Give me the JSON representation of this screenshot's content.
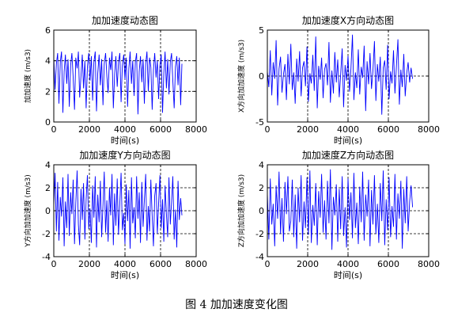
{
  "figure": {
    "caption": "图 4  加加速度变化图"
  },
  "chart_data": [
    {
      "type": "line",
      "title": "加加速度动态图",
      "xlabel": "时间(s)",
      "ylabel": "加加速度 (m/s3)",
      "xlim": [
        0,
        8000
      ],
      "ylim": [
        0,
        6
      ],
      "xticks": [
        0,
        2000,
        4000,
        6000,
        8000
      ],
      "yticks": [
        0,
        2,
        4,
        6
      ],
      "grid": true,
      "color": "#0000ff",
      "series": [
        {
          "x_range": [
            0,
            7200
          ],
          "values": [
            4.2,
            2.1,
            3.8,
            4.5,
            1.2,
            3.9,
            4.6,
            0.6,
            3.3,
            4.4,
            2.5,
            4.1,
            1.0,
            3.7,
            4.5,
            2.9,
            0.8,
            4.2,
            3.5,
            4.6,
            1.6,
            3.0,
            4.4,
            2.2,
            4.0,
            0.9,
            3.6,
            4.5,
            2.7,
            4.3,
            1.4,
            3.9,
            4.6,
            0.7,
            3.2,
            4.4,
            2.4,
            4.1,
            1.1,
            3.8,
            4.5,
            3.0,
            1.9,
            4.2,
            3.4,
            4.6,
            0.9,
            3.1,
            4.3,
            2.3,
            3.9,
            4.5,
            1.3,
            3.7,
            4.4,
            2.8,
            4.2,
            1.0,
            3.5,
            4.6,
            2.5,
            4.0,
            1.7,
            3.9,
            4.5,
            0.5,
            3.3,
            4.3,
            2.6,
            4.1,
            1.2,
            3.8,
            4.6,
            2.0,
            4.2,
            3.6,
            0.8,
            3.4,
            4.5,
            2.9,
            4.0,
            1.5,
            3.7,
            4.4,
            0.6,
            3.2,
            4.6,
            2.2,
            4.1,
            1.8,
            3.9,
            4.5,
            2.7,
            0.9,
            3.6,
            4.3,
            2.4,
            4.2,
            1.1,
            3.8
          ]
        }
      ]
    },
    {
      "type": "line",
      "title": "加加速度X方向动态图",
      "xlabel": "时间(s)",
      "ylabel": "X方向加加速度 (m/s3)",
      "xlim": [
        0,
        8000
      ],
      "ylim": [
        -5,
        5
      ],
      "xticks": [
        0,
        2000,
        4000,
        6000,
        8000
      ],
      "yticks": [
        -5,
        0,
        5
      ],
      "grid": true,
      "color": "#0000ff",
      "series": [
        {
          "x_range": [
            0,
            7200
          ],
          "values": [
            0.5,
            -1.2,
            2.8,
            -2.1,
            1.5,
            -0.3,
            3.9,
            -3.2,
            0.8,
            2.1,
            -1.8,
            0.2,
            1.3,
            -2.6,
            2.4,
            -0.9,
            3.5,
            -1.5,
            0.4,
            -3.0,
            1.9,
            -0.6,
            2.7,
            -2.2,
            0.9,
            1.6,
            -1.1,
            3.2,
            -2.8,
            0.3,
            -0.8,
            2.3,
            -1.6,
            4.3,
            -3.5,
            1.1,
            -0.4,
            2.0,
            -2.4,
            0.7,
            1.4,
            -1.0,
            3.7,
            -2.9,
            0.6,
            -1.9,
            2.6,
            -0.7,
            1.8,
            -2.3,
            0.2,
            3.0,
            -3.4,
            1.2,
            -0.5,
            2.2,
            -1.7,
            0.8,
            4.5,
            -2.6,
            0.4,
            -1.3,
            2.9,
            -2.0,
            1.0,
            -0.2,
            3.3,
            -3.8,
            1.6,
            -0.9,
            2.5,
            -1.4,
            0.6,
            3.8,
            -2.7,
            1.3,
            -0.6,
            2.1,
            -4.2,
            0.9,
            1.7,
            -1.5,
            3.4,
            -2.5,
            0.5,
            -0.8,
            2.8,
            -1.9,
            1.1,
            4.0,
            -3.1,
            0.7,
            -1.2,
            2.4,
            -2.2,
            0.3,
            1.5,
            -0.7,
            0.9,
            -0.3
          ]
        }
      ]
    },
    {
      "type": "line",
      "title": "加加速度Y方向动态图",
      "xlabel": "时间(s)",
      "ylabel": "Y方向加加速度 (m/s3)",
      "xlim": [
        0,
        8000
      ],
      "ylim": [
        -4,
        4
      ],
      "xticks": [
        0,
        2000,
        4000,
        6000,
        8000
      ],
      "yticks": [
        -4,
        -2,
        0,
        2,
        4
      ],
      "grid": true,
      "color": "#0000ff",
      "series": [
        {
          "x_range": [
            0,
            7200
          ],
          "values": [
            0.4,
            3.3,
            -1.8,
            2.5,
            -2.6,
            1.2,
            -0.5,
            2.9,
            -3.1,
            0.8,
            -1.5,
            3.2,
            -2.2,
            1.6,
            -0.3,
            2.7,
            -2.9,
            0.6,
            3.5,
            -1.2,
            -3.0,
            1.9,
            -0.8,
            2.4,
            -2.5,
            1.0,
            3.1,
            -1.6,
            0.2,
            -2.8,
            2.2,
            -0.6,
            3.0,
            -3.2,
            1.4,
            -1.0,
            2.6,
            -2.3,
            0.5,
            3.4,
            -1.9,
            0.9,
            -2.7,
            2.0,
            -0.4,
            3.2,
            -3.0,
            1.5,
            -1.3,
            2.8,
            -2.1,
            0.7,
            3.3,
            -1.7,
            -0.2,
            -2.9,
            2.3,
            -0.9,
            1.8,
            -3.3,
            2.9,
            -1.1,
            0.3,
            -2.4,
            3.0,
            -0.7,
            1.6,
            -2.8,
            2.5,
            -1.4,
            0.9,
            3.2,
            -2.6,
            0.4,
            -1.8,
            2.7,
            -0.5,
            -3.1,
            1.3,
            2.4,
            -2.0,
            0.6,
            3.1,
            -1.5,
            1.0,
            -2.7,
            2.2,
            -0.3,
            -2.3,
            2.9,
            -1.2,
            0.8,
            3.0,
            -2.5,
            0.1,
            -3.2,
            2.6,
            -0.8,
            1.1,
            -0.4
          ]
        }
      ]
    },
    {
      "type": "line",
      "title": "加加速度Z方向动态图",
      "xlabel": "时间(s)",
      "ylabel": "Z方向加加速度 (m/s3)",
      "xlim": [
        0,
        8000
      ],
      "ylim": [
        -4,
        4
      ],
      "xticks": [
        0,
        2000,
        4000,
        6000,
        8000
      ],
      "yticks": [
        -4,
        -2,
        0,
        2,
        4
      ],
      "grid": true,
      "color": "#0000ff",
      "series": [
        {
          "x_range": [
            0,
            7200
          ],
          "values": [
            1.5,
            -2.5,
            2.8,
            -1.2,
            0.6,
            -3.1,
            2.2,
            -0.7,
            3.4,
            -2.0,
            1.1,
            -2.7,
            2.5,
            -0.3,
            3.0,
            -1.8,
            -0.9,
            2.7,
            -2.3,
            1.4,
            -3.3,
            2.0,
            -1.0,
            3.1,
            -2.6,
            0.8,
            -1.5,
            2.9,
            -2.1,
            3.5,
            -2.8,
            0.5,
            -1.3,
            2.4,
            -3.0,
            1.7,
            -0.6,
            3.2,
            -1.9,
            0.9,
            -2.5,
            2.6,
            -1.1,
            3.6,
            -3.4,
            1.2,
            -0.4,
            2.3,
            -2.7,
            1.9,
            -1.6,
            3.0,
            -2.2,
            0.3,
            -3.2,
            2.8,
            -0.8,
            1.6,
            -2.4,
            3.3,
            -1.5,
            0.7,
            -2.9,
            2.1,
            -1.0,
            3.4,
            -2.6,
            1.4,
            -0.5,
            2.7,
            -3.1,
            1.8,
            -1.2,
            3.1,
            -2.0,
            0.6,
            -2.8,
            2.4,
            -0.9,
            3.5,
            -3.0,
            1.0,
            -1.7,
            2.9,
            -2.3,
            0.4,
            -1.4,
            3.2,
            -2.5,
            1.5,
            -0.7,
            2.6,
            -3.3,
            1.9,
            -1.1,
            3.0,
            -1.8,
            0.8,
            2.2,
            0.3
          ]
        }
      ]
    }
  ]
}
